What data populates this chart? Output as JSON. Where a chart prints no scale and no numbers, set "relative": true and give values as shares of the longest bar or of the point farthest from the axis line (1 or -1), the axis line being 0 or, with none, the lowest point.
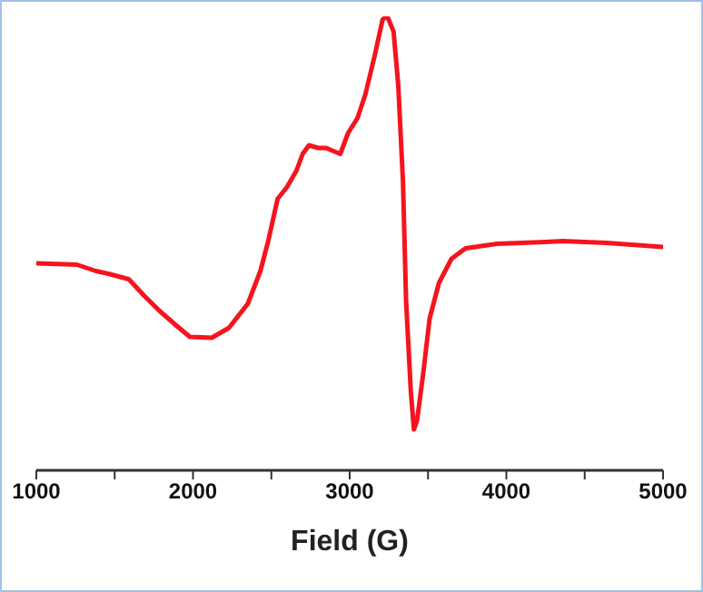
{
  "chart_data": {
    "type": "line",
    "xlabel": "Field (G)",
    "relative": true,
    "xlim": [
      1000,
      5000
    ],
    "xticks": [
      1000,
      {
        "value": 1500,
        "label": null
      },
      2000,
      {
        "value": 2500,
        "label": null
      },
      3000,
      {
        "value": 3500,
        "label": null
      },
      4000,
      {
        "value": 4500,
        "label": null
      },
      5000
    ],
    "marker": "none",
    "line_style": "solid",
    "series": [
      {
        "color": "#f5141e",
        "x": [
          1000,
          1260,
          1380,
          1460,
          1590,
          1690,
          1790,
          1900,
          1980,
          2120,
          2230,
          2350,
          2430,
          2480,
          2540,
          2600,
          2660,
          2700,
          2740,
          2800,
          2850,
          2940,
          2990,
          3050,
          3100,
          3160,
          3210,
          3240,
          3280,
          3310,
          3340,
          3360,
          3390,
          3410,
          3430,
          3470,
          3510,
          3570,
          3650,
          3740,
          3940,
          4250,
          4360,
          4640,
          5000
        ],
        "values": [
          0.456,
          0.453,
          0.439,
          0.433,
          0.421,
          0.384,
          0.35,
          0.317,
          0.294,
          0.292,
          0.314,
          0.367,
          0.439,
          0.505,
          0.598,
          0.624,
          0.66,
          0.697,
          0.716,
          0.71,
          0.71,
          0.697,
          0.743,
          0.776,
          0.828,
          0.914,
          0.993,
          1,
          0.967,
          0.848,
          0.637,
          0.373,
          0.175,
          0.09,
          0.11,
          0.215,
          0.334,
          0.413,
          0.466,
          0.489,
          0.499,
          0.503,
          0.505,
          0.501,
          0.492
        ]
      }
    ]
  }
}
